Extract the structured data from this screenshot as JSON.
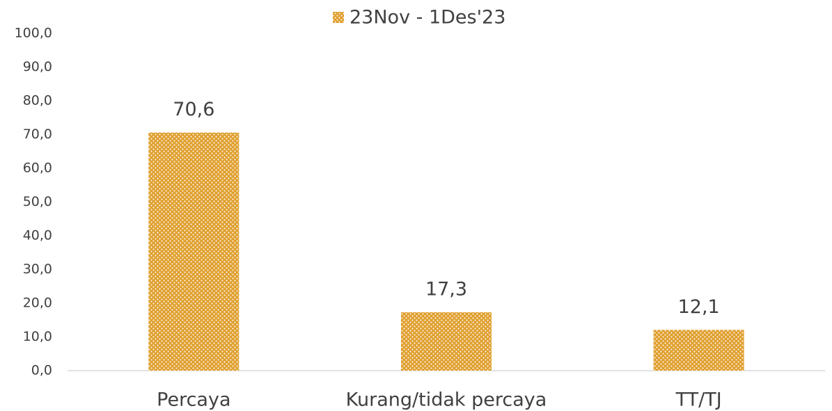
{
  "chart_data": {
    "type": "bar",
    "categories": [
      "Percaya",
      "Kurang/tidak percaya",
      "TT/TJ"
    ],
    "series": [
      {
        "name": "23Nov - 1Des'23",
        "color": "#e0a030",
        "values": [
          70.6,
          17.3,
          12.1
        ],
        "value_labels": [
          "70,6",
          "17,3",
          "12,1"
        ]
      }
    ],
    "ylim": [
      0,
      100
    ],
    "yticks": [
      {
        "value": 0,
        "label": "0,0"
      },
      {
        "value": 10,
        "label": "10,0"
      },
      {
        "value": 20,
        "label": "20,0"
      },
      {
        "value": 30,
        "label": "30,0"
      },
      {
        "value": 40,
        "label": "40,0"
      },
      {
        "value": 50,
        "label": "50,0"
      },
      {
        "value": 60,
        "label": "60,0"
      },
      {
        "value": 70,
        "label": "70,0"
      },
      {
        "value": 80,
        "label": "80,0"
      },
      {
        "value": 90,
        "label": "90,0"
      },
      {
        "value": 100,
        "label": "100,0"
      }
    ],
    "grid": false,
    "legend": "top"
  }
}
